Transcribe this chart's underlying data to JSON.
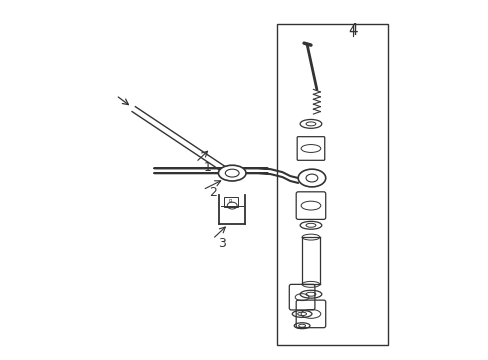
{
  "bg_color": "#ffffff",
  "line_color": "#333333",
  "figsize": [
    4.89,
    3.6
  ],
  "dpi": 100,
  "label_4": "4",
  "label_1": "1",
  "label_2": "2",
  "label_3": "3"
}
